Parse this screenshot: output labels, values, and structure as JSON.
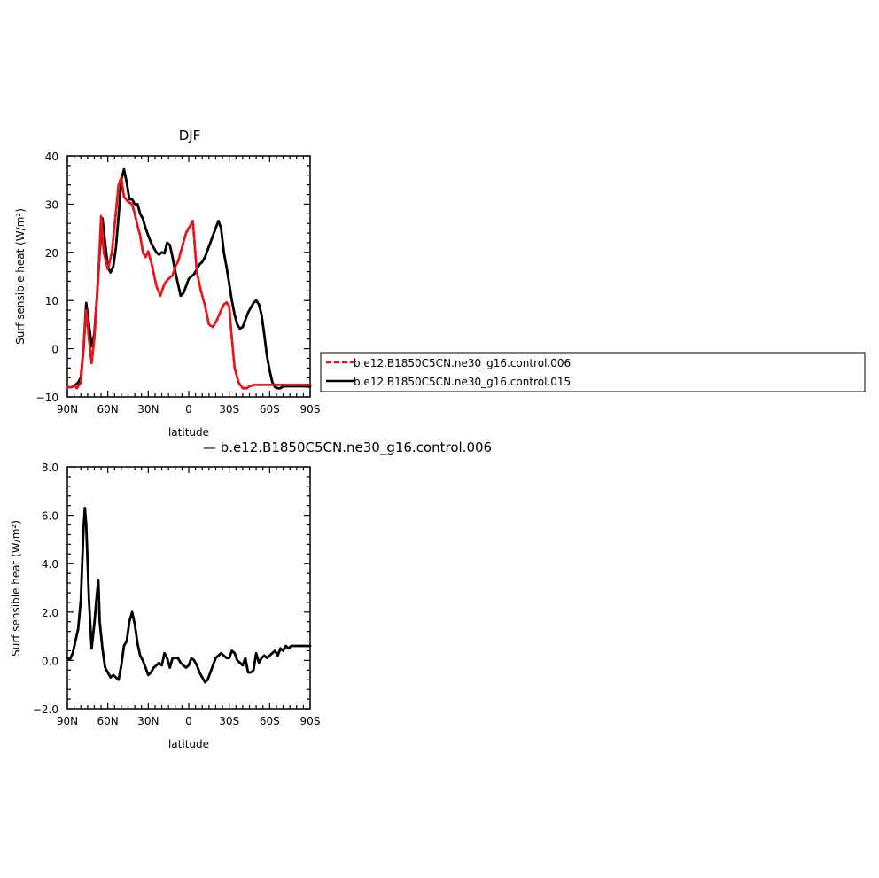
{
  "chart_data": [
    {
      "type": "line",
      "title": "DJF",
      "xlabel": "latitude",
      "ylabel": "Surf sensible heat (W/m²)",
      "xlim": [
        -90,
        90
      ],
      "ylim": [
        -10,
        40
      ],
      "x_ticks": [
        -90,
        -60,
        -30,
        0,
        30,
        60,
        90
      ],
      "x_tick_labels": [
        "90N",
        "60N",
        "30N",
        "0",
        "30S",
        "60S",
        "90S"
      ],
      "y_ticks": [
        -10,
        0,
        10,
        20,
        30,
        40
      ],
      "y_tick_labels": [
        "−10",
        "0",
        "10",
        "20",
        "30",
        "40"
      ],
      "grid": false,
      "legend_position": "right",
      "series": [
        {
          "name": "b.e12.B1850C5CN.ne30_g16.control.006",
          "color": "#e8141a",
          "dash": "dashed",
          "x": [
            -90,
            -87,
            -85,
            -83,
            -80,
            -78,
            -76,
            -74,
            -72,
            -70,
            -67,
            -65,
            -63,
            -60,
            -57,
            -55,
            -52,
            -50,
            -48,
            -45,
            -42,
            -40,
            -38,
            -36,
            -34,
            -32,
            -30,
            -27,
            -24,
            -21,
            -18,
            -15,
            -12,
            -10,
            -8,
            -5,
            -2,
            0,
            3,
            6,
            9,
            12,
            15,
            18,
            21,
            24,
            26,
            28,
            30,
            32,
            34,
            37,
            40,
            43,
            45,
            48,
            51,
            54,
            57,
            60,
            62,
            64,
            67,
            70,
            73,
            76,
            78,
            80,
            83,
            86,
            88,
            90
          ],
          "values": [
            -8,
            -8,
            -7.5,
            -8.2,
            -7,
            0.5,
            8,
            2,
            -3,
            2,
            15,
            27.5,
            20,
            16.5,
            20,
            25.5,
            34,
            35.5,
            31.5,
            30.5,
            30,
            28,
            25.5,
            23.5,
            20,
            19,
            20.2,
            17,
            13,
            11,
            13.5,
            14.5,
            15.2,
            17,
            18,
            21,
            24,
            25,
            26.5,
            16,
            12,
            9,
            5,
            4.5,
            6,
            8,
            9.2,
            9.6,
            8.8,
            2,
            -4,
            -7,
            -8.2,
            -8.2,
            -7.8,
            -7.5,
            -7.5,
            -7.5,
            -7.5,
            -7.5,
            -7.5,
            -7.5,
            -7.5,
            -7.5,
            -7.5,
            -7.5,
            -7.5,
            -7.5,
            -7.5,
            -7.5,
            -7.5,
            -7.5
          ]
        },
        {
          "name": "b.e12.B1850C5CN.ne30_g16.control.015",
          "color": "#000000",
          "dash": "solid",
          "x": [
            -90,
            -87,
            -84,
            -82,
            -80,
            -78,
            -76,
            -74,
            -72,
            -70,
            -68,
            -66,
            -64,
            -62,
            -60,
            -58,
            -56,
            -54,
            -52,
            -50,
            -48,
            -46,
            -44,
            -42,
            -40,
            -38,
            -36,
            -34,
            -32,
            -30,
            -28,
            -26,
            -24,
            -22,
            -20,
            -18,
            -16,
            -14,
            -12,
            -10,
            -8,
            -6,
            -4,
            -2,
            0,
            2,
            4,
            6,
            8,
            10,
            12,
            14,
            16,
            18,
            20,
            22,
            24,
            26,
            28,
            30,
            32,
            34,
            36,
            38,
            40,
            42,
            44,
            46,
            48,
            50,
            52,
            54,
            56,
            58,
            60,
            62,
            64,
            66,
            68,
            70,
            72,
            74,
            76,
            78,
            80,
            82,
            84,
            86,
            88,
            90
          ],
          "values": [
            -8,
            -8,
            -7.5,
            -7,
            -6,
            0,
            9.5,
            5,
            0.5,
            3,
            11,
            20,
            27,
            22,
            17,
            15.8,
            17,
            21,
            27.5,
            35,
            37.2,
            34.5,
            31,
            31,
            30,
            30,
            28,
            27,
            25,
            23.5,
            22,
            21,
            20,
            19.5,
            20,
            19.8,
            22,
            21.5,
            19,
            16,
            13.5,
            11,
            11.5,
            13,
            14.5,
            15,
            15.5,
            16.5,
            17.5,
            18,
            19,
            20.5,
            22,
            23.5,
            25,
            26.5,
            25,
            20,
            17,
            13.5,
            10,
            7,
            5,
            4.2,
            4.5,
            6,
            7.5,
            8.5,
            9.5,
            10,
            9.2,
            7,
            3,
            -1.5,
            -4.5,
            -7,
            -8,
            -8.2,
            -8.2,
            -7.8,
            -7.8,
            -7.8,
            -7.8,
            -7.8,
            -7.8,
            -7.8,
            -7.8,
            -7.8,
            -7.8,
            -7.8
          ]
        }
      ]
    },
    {
      "type": "line",
      "title": "— b.e12.B1850C5CN.ne30_g16.control.006",
      "xlabel": "latitude",
      "ylabel": "Surf sensible heat (W/m²)",
      "xlim": [
        -90,
        90
      ],
      "ylim": [
        -2,
        8
      ],
      "x_ticks": [
        -90,
        -60,
        -30,
        0,
        30,
        60,
        90
      ],
      "x_tick_labels": [
        "90N",
        "60N",
        "30N",
        "0",
        "30S",
        "60S",
        "90S"
      ],
      "y_ticks": [
        -2,
        0,
        2,
        4,
        6,
        8
      ],
      "y_tick_labels": [
        "−2.0",
        "0.0",
        "2.0",
        "4.0",
        "6.0",
        "8.0"
      ],
      "grid": false,
      "series": [
        {
          "color": "#000000",
          "x": [
            -90,
            -88,
            -86,
            -84,
            -82,
            -80,
            -78,
            -77,
            -76,
            -74,
            -72,
            -70,
            -68,
            -67,
            -66,
            -64,
            -62,
            -60,
            -58,
            -56,
            -54,
            -52,
            -50,
            -48,
            -46,
            -44,
            -42,
            -40,
            -38,
            -36,
            -34,
            -32,
            -30,
            -28,
            -26,
            -24,
            -22,
            -20,
            -18,
            -16,
            -14,
            -12,
            -10,
            -8,
            -6,
            -4,
            -2,
            0,
            2,
            4,
            6,
            8,
            10,
            12,
            14,
            16,
            18,
            20,
            22,
            24,
            26,
            28,
            30,
            32,
            34,
            36,
            38,
            40,
            42,
            44,
            46,
            48,
            50,
            52,
            54,
            56,
            58,
            60,
            62,
            64,
            66,
            68,
            70,
            72,
            74,
            76,
            78,
            80,
            82,
            84,
            86,
            88,
            90
          ],
          "values": [
            0.1,
            0.05,
            0.3,
            0.8,
            1.3,
            2.5,
            5.5,
            6.3,
            5.6,
            2.5,
            0.5,
            1.5,
            2.8,
            3.3,
            1.6,
            0.5,
            -0.3,
            -0.5,
            -0.7,
            -0.6,
            -0.7,
            -0.8,
            -0.2,
            0.6,
            0.8,
            1.6,
            2.0,
            1.5,
            0.7,
            0.2,
            0,
            -0.3,
            -0.6,
            -0.5,
            -0.3,
            -0.2,
            -0.1,
            -0.2,
            0.3,
            0.1,
            -0.3,
            0.1,
            0.1,
            0.1,
            -0.1,
            -0.2,
            -0.3,
            -0.2,
            0.1,
            0,
            -0.2,
            -0.5,
            -0.7,
            -0.9,
            -0.8,
            -0.5,
            -0.2,
            0.1,
            0.2,
            0.3,
            0.2,
            0.1,
            0.1,
            0.4,
            0.3,
            0,
            -0.1,
            -0.2,
            0.1,
            -0.5,
            -0.5,
            -0.4,
            0.3,
            -0.1,
            0.1,
            0.2,
            0.1,
            0.2,
            0.3,
            0.4,
            0.2,
            0.5,
            0.4,
            0.6,
            0.5,
            0.6,
            0.6,
            0.6,
            0.6,
            0.6,
            0.6,
            0.6,
            0.6
          ]
        }
      ]
    }
  ]
}
